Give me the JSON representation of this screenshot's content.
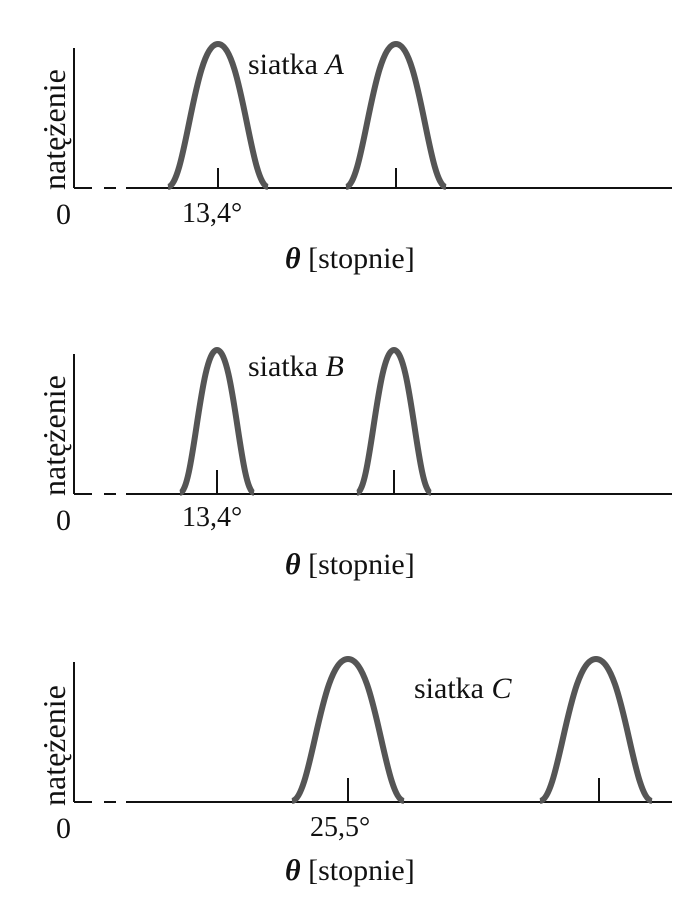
{
  "panels": [
    {
      "y_label": "natężenie",
      "zero_label": "0",
      "tick_label": "13,4°",
      "x_label_symbol": "θ",
      "x_label_unit": "[stopnie]",
      "grating_prefix": "siatka",
      "grating_letter": "A",
      "peaks_deg": [
        13.4,
        26.8
      ]
    },
    {
      "y_label": "natężenie",
      "zero_label": "0",
      "tick_label": "13,4°",
      "x_label_symbol": "θ",
      "x_label_unit": "[stopnie]",
      "grating_prefix": "siatka",
      "grating_letter": "B",
      "peaks_deg": [
        13.4,
        26.8
      ]
    },
    {
      "y_label": "natężenie",
      "zero_label": "0",
      "tick_label": "25,5°",
      "x_label_symbol": "θ",
      "x_label_unit": "[stopnie]",
      "grating_prefix": "siatka",
      "grating_letter": "C",
      "peaks_deg": [
        25.5,
        51.0
      ]
    }
  ],
  "colors": {
    "curve": "#555555",
    "axis": "#111111"
  }
}
